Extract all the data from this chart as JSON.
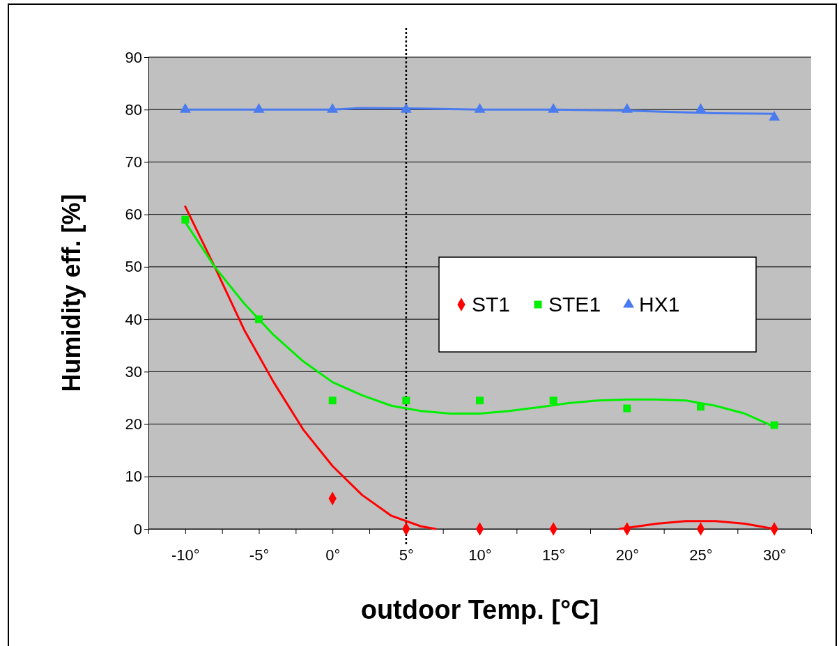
{
  "chart_data": {
    "type": "scatter",
    "xlabel": "outdoor Temp. [°C]",
    "ylabel": "Humidity eff.  [%]",
    "xlim": [
      -12.5,
      32.5
    ],
    "xticks": [
      {
        "value": -12.5,
        "label": null
      },
      {
        "value": -10,
        "label": "-10°"
      },
      {
        "value": -7.5,
        "label": null
      },
      {
        "value": -5,
        "label": "-5°"
      },
      {
        "value": -2.5,
        "label": null
      },
      {
        "value": 0,
        "label": "0°"
      },
      {
        "value": 2.5,
        "label": null
      },
      {
        "value": 5,
        "label": "5°"
      },
      {
        "value": 7.5,
        "label": null
      },
      {
        "value": 10,
        "label": "10°"
      },
      {
        "value": 12.5,
        "label": null
      },
      {
        "value": 15,
        "label": "15°"
      },
      {
        "value": 17.5,
        "label": null
      },
      {
        "value": 20,
        "label": "20°"
      },
      {
        "value": 22.5,
        "label": null
      },
      {
        "value": 25,
        "label": "25°"
      },
      {
        "value": 27.5,
        "label": null
      },
      {
        "value": 30,
        "label": "30°"
      },
      {
        "value": 32.5,
        "label": null
      }
    ],
    "ylim": [
      0,
      90
    ],
    "yticks": [
      0,
      10,
      20,
      30,
      40,
      50,
      60,
      70,
      80,
      90
    ],
    "grid": "y",
    "legend": "right",
    "ref_lines": [
      {
        "axis": "x",
        "value": 5,
        "line_style": "dotted",
        "color": "#000000"
      }
    ],
    "series": [
      {
        "type": "line",
        "color": "#ff0000",
        "x": [
          -10,
          -8,
          -6,
          -4,
          -2,
          0,
          2,
          4,
          6,
          7,
          13,
          19.5,
          22,
          24,
          26,
          28,
          30
        ],
        "values": [
          61.5,
          50,
          38,
          28,
          19,
          12,
          6.5,
          2.5,
          0.5,
          0,
          null,
          0,
          1,
          1.5,
          1.5,
          1,
          0
        ]
      },
      {
        "type": "line",
        "color": "#00ee00",
        "x": [
          -10,
          -8,
          -6,
          -4,
          -2,
          0,
          2,
          4,
          6,
          8,
          10,
          12,
          14,
          16,
          18,
          20,
          22,
          24,
          26,
          28,
          30
        ],
        "values": [
          58.5,
          50,
          43,
          37,
          32,
          28,
          25.5,
          23.5,
          22.5,
          22,
          22,
          22.5,
          23.2,
          24,
          24.5,
          24.7,
          24.7,
          24.5,
          23.5,
          22,
          19.5
        ]
      },
      {
        "type": "line",
        "color": "#4a7bef",
        "x": [
          -10,
          -5,
          0,
          2,
          6,
          10,
          15,
          20,
          26,
          30
        ],
        "values": [
          80,
          80,
          80,
          80.3,
          80.2,
          80,
          80,
          79.8,
          79.3,
          79.2
        ]
      },
      {
        "name": "ST1",
        "color": "#ff0000",
        "marker": "diamond",
        "x": [
          0,
          5,
          10,
          15,
          20,
          25,
          30
        ],
        "values": [
          5.8,
          0,
          0,
          0,
          0,
          0,
          0
        ]
      },
      {
        "name": "STE1",
        "color": "#00ee00",
        "marker": "square",
        "x": [
          -10,
          -5,
          0,
          5,
          10,
          15,
          20,
          25,
          30
        ],
        "values": [
          59,
          40,
          24.5,
          24.5,
          24.5,
          24.5,
          23,
          23.3,
          19.8
        ]
      },
      {
        "name": "HX1",
        "color": "#4a7bef",
        "marker": "triangle",
        "x": [
          -10,
          -5,
          0,
          5,
          10,
          15,
          20,
          25,
          30
        ],
        "values": [
          80,
          80,
          80,
          80,
          80,
          80,
          80,
          80,
          78.5
        ]
      }
    ]
  }
}
